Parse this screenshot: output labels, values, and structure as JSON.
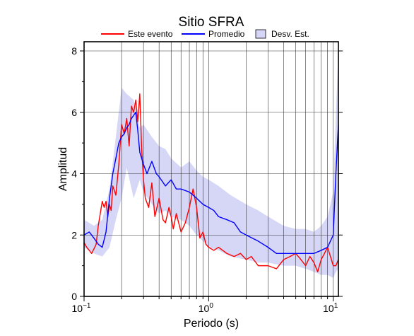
{
  "chart_data": {
    "type": "line",
    "title": "Sitio SFRA",
    "xlabel": "Periodo (s)",
    "ylabel": "Amplitud",
    "xscale": "log",
    "xlim": [
      0.1,
      11
    ],
    "ylim": [
      0,
      8.3
    ],
    "grid": true,
    "legend_position": "top",
    "x_ticks": [
      {
        "value": 0.1,
        "base": "10",
        "exp": "−1"
      },
      {
        "value": 1,
        "base": "10",
        "exp": "0"
      },
      {
        "value": 10,
        "base": "10",
        "exp": "1"
      }
    ],
    "y_ticks": [
      0,
      2,
      4,
      6,
      8
    ],
    "legend": [
      {
        "label": "Este evento",
        "kind": "line",
        "color": "#ff0000"
      },
      {
        "label": "Promedio",
        "kind": "line",
        "color": "#0000ff"
      },
      {
        "label": "Desv. Est.",
        "kind": "area",
        "color": "#d6d6f7"
      }
    ],
    "band": {
      "name": "Desv. Est.",
      "color": "#d6d6f7",
      "x": [
        0.1,
        0.12,
        0.14,
        0.16,
        0.18,
        0.2,
        0.22,
        0.25,
        0.28,
        0.3,
        0.35,
        0.4,
        0.45,
        0.5,
        0.6,
        0.7,
        0.8,
        0.9,
        1.0,
        1.2,
        1.5,
        2.0,
        2.5,
        3.0,
        4.0,
        5.0,
        6.0,
        7.0,
        8.0,
        9.0,
        10.0,
        10.5,
        11.0
      ],
      "upper": [
        2.5,
        2.3,
        2.5,
        3.5,
        5.2,
        6.8,
        6.6,
        6.4,
        5.5,
        5.6,
        5.2,
        4.9,
        4.8,
        4.5,
        4.2,
        4.4,
        4.1,
        3.9,
        3.8,
        3.6,
        3.3,
        3.0,
        2.8,
        2.6,
        2.3,
        2.2,
        2.2,
        2.1,
        2.3,
        2.6,
        3.4,
        6.0,
        8.0
      ],
      "lower": [
        1.6,
        1.4,
        1.3,
        1.6,
        2.5,
        3.2,
        4.2,
        3.2,
        3.8,
        3.4,
        3.0,
        2.7,
        2.8,
        2.6,
        2.5,
        2.3,
        2.0,
        1.8,
        1.6,
        1.5,
        1.3,
        1.2,
        1.1,
        1.1,
        1.0,
        1.0,
        0.9,
        0.8,
        0.7,
        0.7,
        0.6,
        0.8,
        0.9
      ]
    },
    "series": [
      {
        "name": "Este evento",
        "color": "#ff0000",
        "x": [
          0.1,
          0.105,
          0.11,
          0.115,
          0.12,
          0.125,
          0.13,
          0.14,
          0.145,
          0.15,
          0.155,
          0.16,
          0.165,
          0.17,
          0.18,
          0.19,
          0.2,
          0.21,
          0.22,
          0.23,
          0.24,
          0.25,
          0.26,
          0.27,
          0.28,
          0.29,
          0.3,
          0.31,
          0.33,
          0.35,
          0.37,
          0.4,
          0.43,
          0.45,
          0.48,
          0.5,
          0.52,
          0.55,
          0.6,
          0.65,
          0.7,
          0.75,
          0.8,
          0.85,
          0.9,
          0.95,
          1.0,
          1.1,
          1.2,
          1.4,
          1.6,
          1.8,
          2.0,
          2.2,
          2.5,
          3.0,
          3.5,
          4.0,
          4.5,
          5.0,
          5.5,
          6.0,
          6.5,
          7.0,
          7.5,
          8.0,
          8.5,
          9.0,
          9.5,
          10.0,
          10.5,
          11.0
        ],
        "y": [
          1.75,
          1.6,
          1.5,
          1.4,
          1.55,
          1.7,
          2.3,
          3.1,
          2.9,
          3.1,
          2.6,
          3.0,
          2.8,
          3.6,
          3.3,
          4.3,
          5.6,
          5.3,
          5.8,
          4.9,
          6.2,
          6.0,
          6.4,
          5.7,
          6.6,
          4.8,
          3.8,
          3.2,
          2.9,
          3.7,
          2.6,
          3.2,
          2.5,
          2.4,
          2.9,
          2.6,
          2.2,
          2.7,
          2.1,
          2.4,
          2.9,
          3.5,
          2.9,
          1.9,
          2.1,
          1.7,
          1.6,
          1.5,
          1.6,
          1.4,
          1.3,
          1.4,
          1.2,
          1.3,
          1.0,
          1.0,
          0.9,
          1.2,
          1.3,
          1.4,
          1.2,
          1.0,
          1.3,
          1.1,
          0.8,
          1.2,
          1.4,
          1.6,
          1.3,
          1.0,
          1.0,
          1.2
        ]
      },
      {
        "name": "Promedio",
        "color": "#0000ff",
        "x": [
          0.1,
          0.11,
          0.12,
          0.13,
          0.14,
          0.15,
          0.16,
          0.17,
          0.18,
          0.19,
          0.2,
          0.21,
          0.22,
          0.23,
          0.24,
          0.25,
          0.26,
          0.27,
          0.28,
          0.3,
          0.32,
          0.35,
          0.38,
          0.4,
          0.45,
          0.5,
          0.55,
          0.6,
          0.7,
          0.75,
          0.8,
          0.9,
          1.0,
          1.1,
          1.2,
          1.4,
          1.6,
          1.8,
          2.0,
          2.5,
          3.0,
          3.5,
          4.0,
          5.0,
          6.0,
          7.0,
          8.0,
          9.0,
          10.0,
          10.5,
          11.0
        ],
        "y": [
          2.0,
          2.1,
          1.9,
          1.7,
          1.6,
          2.1,
          3.2,
          4.0,
          4.5,
          5.0,
          5.2,
          5.3,
          5.5,
          5.6,
          5.8,
          5.9,
          6.0,
          5.4,
          4.7,
          4.3,
          4.0,
          4.4,
          4.0,
          3.9,
          3.6,
          3.8,
          3.5,
          3.5,
          3.4,
          3.3,
          3.2,
          3.0,
          2.9,
          2.8,
          2.6,
          2.5,
          2.4,
          2.1,
          2.0,
          1.8,
          1.6,
          1.4,
          1.4,
          1.4,
          1.4,
          1.4,
          1.5,
          1.6,
          2.0,
          4.0,
          5.6
        ]
      }
    ]
  }
}
